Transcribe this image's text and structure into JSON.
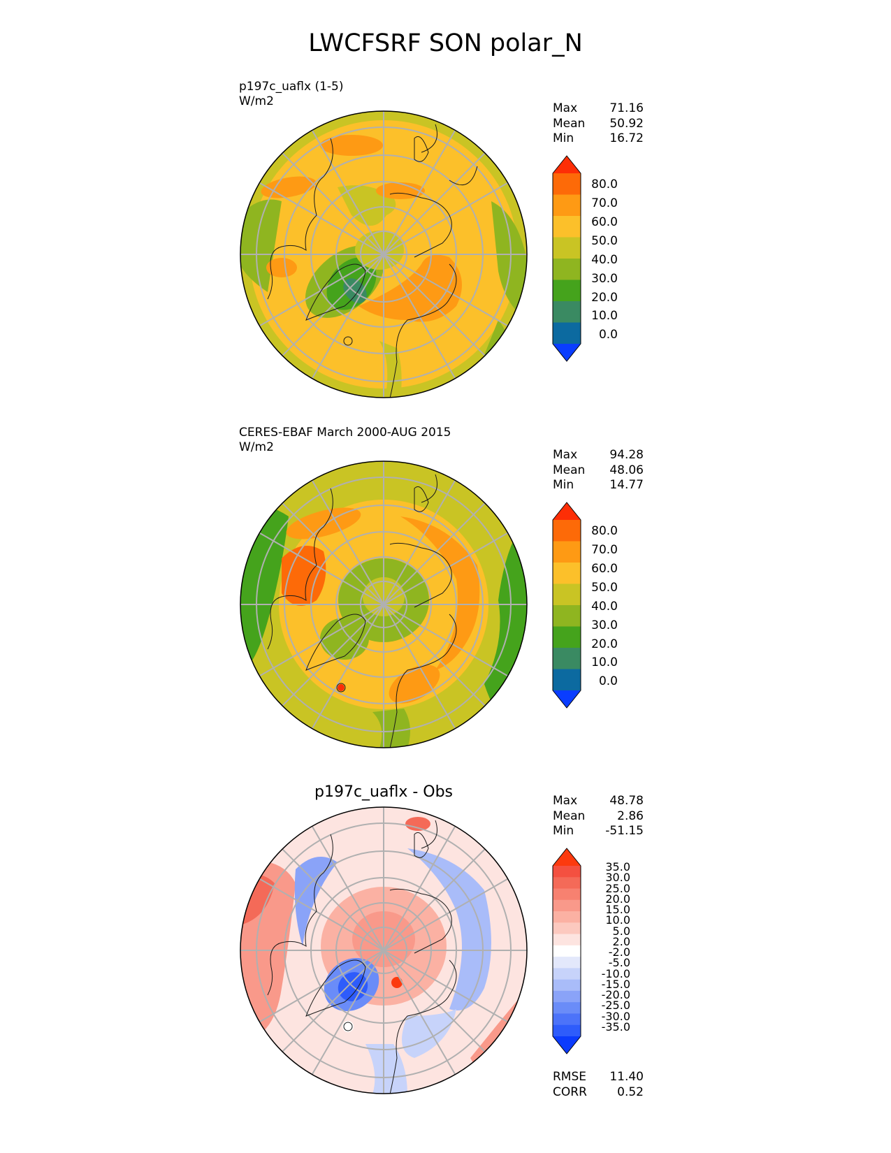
{
  "title": "LWCFSRF SON polar_N",
  "panels": [
    {
      "id": "model",
      "title_line1": "p197c_uaflx (1-5)",
      "title_line2": "W/m2",
      "stats": [
        {
          "label": "Max",
          "value": "71.16"
        },
        {
          "label": "Mean",
          "value": "50.92"
        },
        {
          "label": "Min",
          "value": "16.72"
        }
      ],
      "colorbar_ticks": [
        "80.0",
        "70.0",
        "60.0",
        "50.0",
        "40.0",
        "30.0",
        "20.0",
        "10.0",
        "0.0"
      ]
    },
    {
      "id": "obs",
      "title_line1": "CERES-EBAF March 2000-AUG 2015",
      "title_line2": "W/m2",
      "stats": [
        {
          "label": "Max",
          "value": "94.28"
        },
        {
          "label": "Mean",
          "value": "48.06"
        },
        {
          "label": "Min",
          "value": "14.77"
        }
      ],
      "colorbar_ticks": [
        "80.0",
        "70.0",
        "60.0",
        "50.0",
        "40.0",
        "30.0",
        "20.0",
        "10.0",
        "0.0"
      ]
    },
    {
      "id": "diff",
      "title": "p197c_uaflx - Obs",
      "stats": [
        {
          "label": "Max",
          "value": "48.78"
        },
        {
          "label": "Mean",
          "value": "2.86"
        },
        {
          "label": "Min",
          "value": "-51.15"
        }
      ],
      "colorbar_ticks": [
        "35.0",
        "30.0",
        "25.0",
        "20.0",
        "15.0",
        "10.0",
        "5.0",
        "2.0",
        "-2.0",
        "-5.0",
        "-10.0",
        "-15.0",
        "-20.0",
        "-25.0",
        "-30.0",
        "-35.0"
      ],
      "metrics": [
        {
          "label": "RMSE",
          "value": "11.40"
        },
        {
          "label": "CORR",
          "value": "0.52"
        }
      ]
    }
  ],
  "colors": {
    "seq": [
      "#0a3dff",
      "#0c6aa0",
      "#3a8a62",
      "#45a31c",
      "#8fb520",
      "#c9c424",
      "#fcc02a",
      "#fe9a14",
      "#fd6a08",
      "#fd2e06"
    ],
    "div": [
      "#0b3bfd",
      "#2e5cfb",
      "#4c73f9",
      "#6a8cf8",
      "#8aa3f8",
      "#a9bcf9",
      "#c7d3fa",
      "#e3e8fb",
      "#ffffff",
      "#fde4e0",
      "#fcc9bf",
      "#fbb1a3",
      "#f9998a",
      "#f78170",
      "#f46a58",
      "#f45040",
      "#fc3a0e"
    ]
  },
  "chart_data": [
    {
      "type": "heatmap",
      "projection": "north polar stereographic",
      "title": "p197c_uaflx (1-5)",
      "units": "W/m2",
      "colorbar_levels": [
        0,
        10,
        20,
        30,
        40,
        50,
        60,
        70,
        80
      ],
      "stats": {
        "max": 71.16,
        "mean": 50.92,
        "min": 16.72
      }
    },
    {
      "type": "heatmap",
      "projection": "north polar stereographic",
      "title": "CERES-EBAF March 2000-AUG 2015",
      "units": "W/m2",
      "colorbar_levels": [
        0,
        10,
        20,
        30,
        40,
        50,
        60,
        70,
        80
      ],
      "stats": {
        "max": 94.28,
        "mean": 48.06,
        "min": 14.77
      }
    },
    {
      "type": "heatmap",
      "projection": "north polar stereographic",
      "title": "p197c_uaflx - Obs",
      "colorbar_levels": [
        -35,
        -30,
        -25,
        -20,
        -15,
        -10,
        -5,
        -2,
        2,
        5,
        10,
        15,
        20,
        25,
        30,
        35
      ],
      "stats": {
        "max": 48.78,
        "mean": 2.86,
        "min": -51.15,
        "rmse": 11.4,
        "corr": 0.52
      }
    }
  ]
}
